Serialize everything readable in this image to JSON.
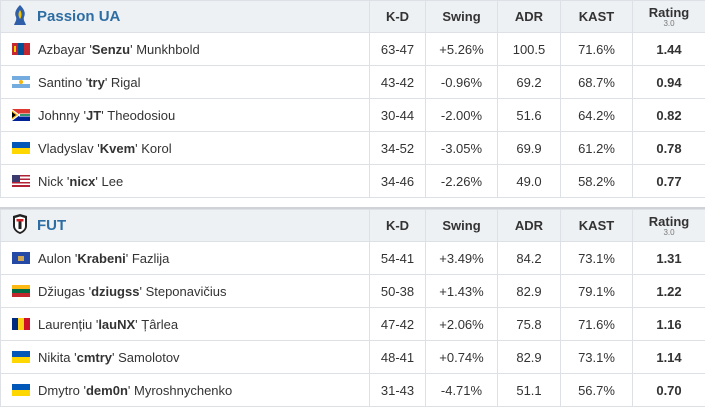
{
  "colors": {
    "team_name": "#2d6da3",
    "positive": "#3f9c3f",
    "negative": "#d43a3a",
    "rating_good": "#2d9a2d",
    "rating_bad": "#cc1a1a",
    "header_bg": "#eef1f4"
  },
  "headers": {
    "kd": "K-D",
    "swing": "Swing",
    "adr": "ADR",
    "kast": "KAST",
    "rating": "Rating",
    "rating_sub": "3.0"
  },
  "teams": [
    {
      "name": "Passion UA",
      "logo_icon": "passion-ua-logo-icon",
      "players": [
        {
          "first": "Azbayar",
          "nick": "Senzu",
          "last": "Munkhbold",
          "flag": "mongolia-flag-icon",
          "kd": "63-47",
          "swing": "+5.26%",
          "adr": "100.5",
          "kast": "71.6%",
          "rating": "1.44"
        },
        {
          "first": "Santino",
          "nick": "try",
          "last": "Rigal",
          "flag": "argentina-flag-icon",
          "kd": "43-42",
          "swing": "-0.96%",
          "adr": "69.2",
          "kast": "68.7%",
          "rating": "0.94"
        },
        {
          "first": "Johnny",
          "nick": "JT",
          "last": "Theodosiou",
          "flag": "south-africa-flag-icon",
          "kd": "30-44",
          "swing": "-2.00%",
          "adr": "51.6",
          "kast": "64.2%",
          "rating": "0.82"
        },
        {
          "first": "Vladyslav",
          "nick": "Kvem",
          "last": "Korol",
          "flag": "ukraine-flag-icon",
          "kd": "34-52",
          "swing": "-3.05%",
          "adr": "69.9",
          "kast": "61.2%",
          "rating": "0.78"
        },
        {
          "first": "Nick",
          "nick": "nicx",
          "last": "Lee",
          "flag": "usa-flag-icon",
          "kd": "34-46",
          "swing": "-2.26%",
          "adr": "49.0",
          "kast": "58.2%",
          "rating": "0.77"
        }
      ]
    },
    {
      "name": "FUT",
      "logo_icon": "fut-logo-icon",
      "players": [
        {
          "first": "Aulon",
          "nick": "Krabeni",
          "last": "Fazlija",
          "flag": "kosovo-flag-icon",
          "kd": "54-41",
          "swing": "+3.49%",
          "adr": "84.2",
          "kast": "73.1%",
          "rating": "1.31"
        },
        {
          "first": "Džiugas",
          "nick": "dziugss",
          "last": "Steponavičius",
          "flag": "lithuania-flag-icon",
          "kd": "50-38",
          "swing": "+1.43%",
          "adr": "82.9",
          "kast": "79.1%",
          "rating": "1.22"
        },
        {
          "first": "Laurențiu",
          "nick": "lauNX",
          "last": "Țârlea",
          "flag": "romania-flag-icon",
          "kd": "47-42",
          "swing": "+2.06%",
          "adr": "75.8",
          "kast": "71.6%",
          "rating": "1.16"
        },
        {
          "first": "Nikita",
          "nick": "cmtry",
          "last": "Samolotov",
          "flag": "ukraine-flag-icon",
          "kd": "48-41",
          "swing": "+0.74%",
          "adr": "82.9",
          "kast": "73.1%",
          "rating": "1.14"
        },
        {
          "first": "Dmytro",
          "nick": "dem0n",
          "last": "Myroshnychenko",
          "flag": "ukraine-flag-icon",
          "kd": "31-43",
          "swing": "-4.71%",
          "adr": "51.1",
          "kast": "56.7%",
          "rating": "0.70"
        }
      ]
    }
  ]
}
